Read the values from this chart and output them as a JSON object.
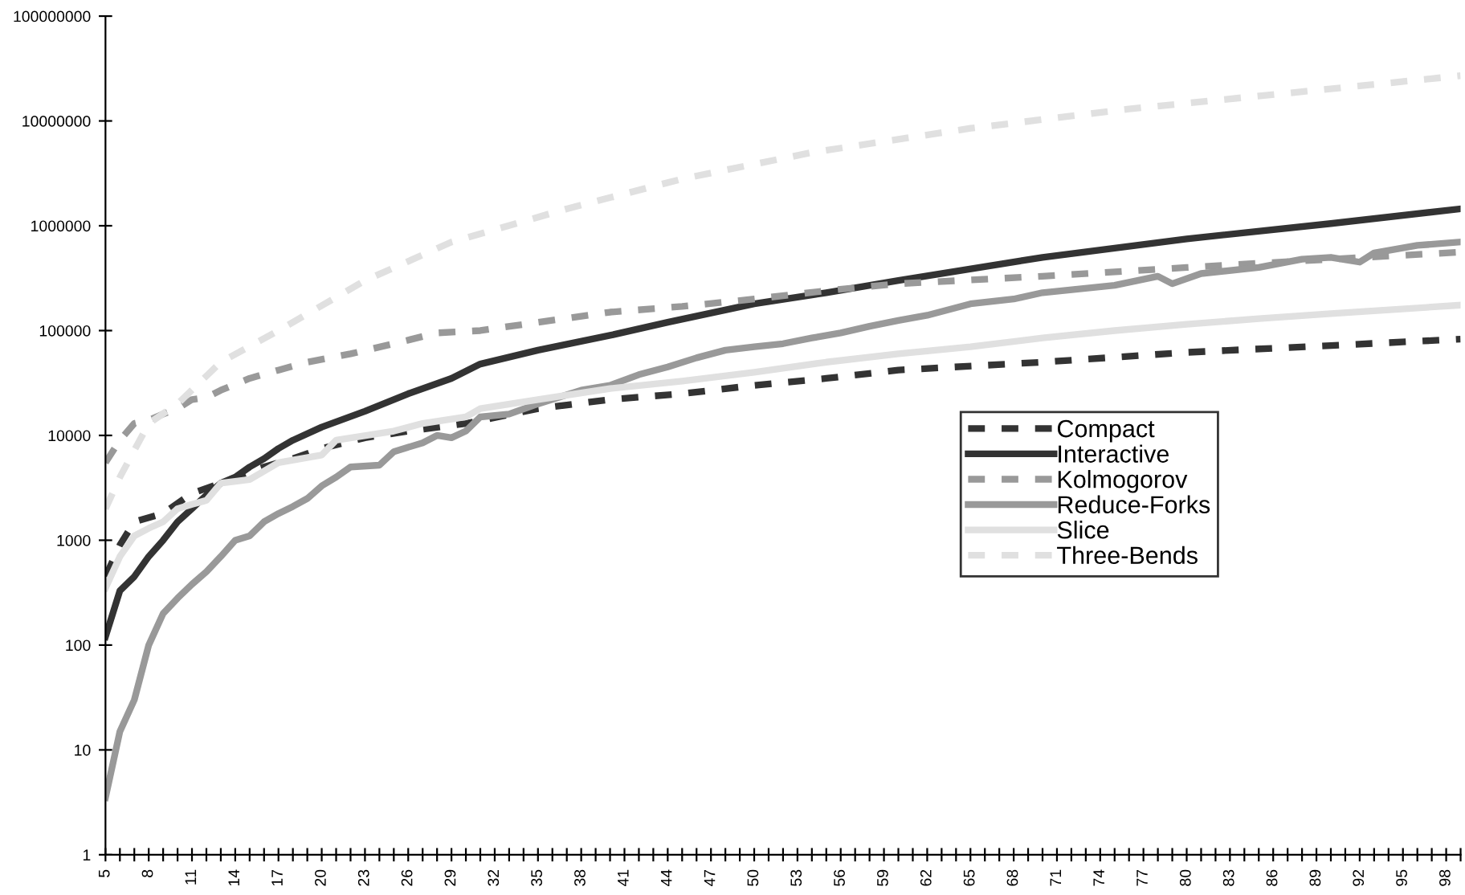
{
  "chart_data": {
    "type": "line",
    "log": "y",
    "grid": false,
    "legend": "right",
    "marker": "none",
    "xlim": [
      5,
      99
    ],
    "ylim": [
      1,
      100000000
    ],
    "yticks": [
      1,
      10,
      100,
      1000,
      10000,
      100000,
      1000000,
      10000000,
      100000000
    ],
    "xticks": [
      5,
      {
        "value": 6,
        "label": null
      },
      {
        "value": 7,
        "label": null
      },
      8,
      {
        "value": 9,
        "label": null
      },
      {
        "value": 10,
        "label": null
      },
      11,
      {
        "value": 12,
        "label": null
      },
      {
        "value": 13,
        "label": null
      },
      14,
      {
        "value": 15,
        "label": null
      },
      {
        "value": 16,
        "label": null
      },
      17,
      {
        "value": 18,
        "label": null
      },
      {
        "value": 19,
        "label": null
      },
      20,
      {
        "value": 21,
        "label": null
      },
      {
        "value": 22,
        "label": null
      },
      23,
      {
        "value": 24,
        "label": null
      },
      {
        "value": 25,
        "label": null
      },
      26,
      {
        "value": 27,
        "label": null
      },
      {
        "value": 28,
        "label": null
      },
      29,
      {
        "value": 30,
        "label": null
      },
      {
        "value": 31,
        "label": null
      },
      32,
      {
        "value": 33,
        "label": null
      },
      {
        "value": 34,
        "label": null
      },
      35,
      {
        "value": 36,
        "label": null
      },
      {
        "value": 37,
        "label": null
      },
      38,
      {
        "value": 39,
        "label": null
      },
      {
        "value": 40,
        "label": null
      },
      41,
      {
        "value": 42,
        "label": null
      },
      {
        "value": 43,
        "label": null
      },
      44,
      {
        "value": 45,
        "label": null
      },
      {
        "value": 46,
        "label": null
      },
      47,
      {
        "value": 48,
        "label": null
      },
      {
        "value": 49,
        "label": null
      },
      50,
      {
        "value": 51,
        "label": null
      },
      {
        "value": 52,
        "label": null
      },
      53,
      {
        "value": 54,
        "label": null
      },
      {
        "value": 55,
        "label": null
      },
      56,
      {
        "value": 57,
        "label": null
      },
      {
        "value": 58,
        "label": null
      },
      59,
      {
        "value": 60,
        "label": null
      },
      {
        "value": 61,
        "label": null
      },
      62,
      {
        "value": 63,
        "label": null
      },
      {
        "value": 64,
        "label": null
      },
      65,
      {
        "value": 66,
        "label": null
      },
      {
        "value": 67,
        "label": null
      },
      68,
      {
        "value": 69,
        "label": null
      },
      {
        "value": 70,
        "label": null
      },
      71,
      {
        "value": 72,
        "label": null
      },
      {
        "value": 73,
        "label": null
      },
      74,
      {
        "value": 75,
        "label": null
      },
      {
        "value": 76,
        "label": null
      },
      77,
      {
        "value": 78,
        "label": null
      },
      {
        "value": 79,
        "label": null
      },
      80,
      {
        "value": 81,
        "label": null
      },
      {
        "value": 82,
        "label": null
      },
      83,
      {
        "value": 84,
        "label": null
      },
      {
        "value": 85,
        "label": null
      },
      86,
      {
        "value": 87,
        "label": null
      },
      {
        "value": 88,
        "label": null
      },
      89,
      {
        "value": 90,
        "label": null
      },
      {
        "value": 91,
        "label": null
      },
      92,
      {
        "value": 93,
        "label": null
      },
      {
        "value": 94,
        "label": null
      },
      95,
      {
        "value": 96,
        "label": null
      },
      {
        "value": 97,
        "label": null
      },
      98,
      {
        "value": 99,
        "label": null
      }
    ],
    "series": [
      {
        "name": "Compact",
        "color": "#333333",
        "line_style": "dashed",
        "x": [
          5,
          6,
          7,
          9,
          11,
          13,
          15,
          16,
          18,
          20,
          23,
          26,
          30,
          35,
          40,
          45,
          50,
          55,
          60,
          70,
          80,
          90,
          99
        ],
        "values": [
          450,
          900,
          1500,
          1800,
          2800,
          3500,
          4500,
          5000,
          6000,
          7500,
          9500,
          11000,
          13000,
          18000,
          22000,
          25000,
          30000,
          35000,
          42000,
          50000,
          62000,
          72000,
          83000
        ]
      },
      {
        "name": "Interactive",
        "color": "#333333",
        "line_style": "solid",
        "x": [
          5,
          6,
          7,
          8,
          9,
          10,
          11,
          12,
          13,
          14,
          15,
          16,
          17,
          18,
          20,
          23,
          26,
          29,
          31,
          35,
          40,
          44,
          50,
          55,
          60,
          70,
          80,
          90,
          99
        ],
        "values": [
          120,
          330,
          450,
          700,
          1000,
          1500,
          2000,
          2700,
          3500,
          4000,
          5000,
          6000,
          7500,
          9000,
          12000,
          17000,
          25000,
          35000,
          48000,
          65000,
          90000,
          120000,
          180000,
          230000,
          300000,
          500000,
          750000,
          1050000,
          1450000
        ]
      },
      {
        "name": "Kolmogorov",
        "color": "#999999",
        "line_style": "dashed",
        "x": [
          5,
          6,
          7,
          8,
          9,
          10,
          11,
          12,
          13,
          15,
          17,
          19,
          22,
          25,
          28,
          31,
          35,
          40,
          45,
          50,
          55,
          60,
          70,
          80,
          90,
          99
        ],
        "values": [
          5500,
          9000,
          13000,
          14000,
          16000,
          18000,
          22000,
          23000,
          27000,
          35000,
          42000,
          50000,
          60000,
          75000,
          95000,
          100000,
          120000,
          150000,
          170000,
          200000,
          240000,
          280000,
          330000,
          400000,
          480000,
          560000
        ]
      },
      {
        "name": "Reduce-Forks",
        "color": "#999999",
        "line_style": "solid",
        "x": [
          5,
          6,
          7,
          8,
          9,
          10,
          11,
          12,
          13,
          14,
          15,
          16,
          17,
          18,
          19,
          20,
          21,
          22,
          24,
          25,
          27,
          28,
          29,
          30,
          31,
          33,
          35,
          38,
          40,
          42,
          44,
          46,
          48,
          50,
          52,
          54,
          56,
          58,
          60,
          62,
          65,
          68,
          70,
          75,
          78,
          79,
          81,
          85,
          88,
          90,
          92,
          93,
          96,
          99
        ],
        "values": [
          3.5,
          15,
          30,
          100,
          200,
          280,
          380,
          500,
          700,
          1000,
          1100,
          1500,
          1800,
          2100,
          2500,
          3300,
          4000,
          5000,
          5200,
          7000,
          8500,
          10000,
          9500,
          11000,
          15000,
          16000,
          20000,
          27000,
          30000,
          38000,
          45000,
          55000,
          65000,
          70000,
          75000,
          85000,
          95000,
          110000,
          125000,
          140000,
          180000,
          200000,
          230000,
          270000,
          330000,
          280000,
          350000,
          400000,
          480000,
          500000,
          450000,
          550000,
          650000,
          700000
        ]
      },
      {
        "name": "Slice",
        "color": "#e0e0e0",
        "line_style": "solid",
        "x": [
          5,
          6,
          7,
          8,
          9,
          10,
          11,
          12,
          13,
          15,
          17,
          20,
          21,
          25,
          27,
          30,
          31,
          35,
          40,
          45,
          50,
          55,
          60,
          65,
          70,
          75,
          80,
          85,
          90,
          99
        ],
        "values": [
          350,
          700,
          1100,
          1300,
          1500,
          2000,
          2200,
          2400,
          3500,
          3800,
          5500,
          6500,
          9000,
          11000,
          13000,
          15000,
          18000,
          22000,
          28000,
          33000,
          40000,
          50000,
          60000,
          70000,
          85000,
          100000,
          115000,
          130000,
          145000,
          175000
        ]
      },
      {
        "name": "Three-Bends",
        "color": "#e0e0e0",
        "line_style": "dashed",
        "x": [
          5,
          6,
          8,
          10,
          13,
          17,
          23,
          29,
          37,
          45,
          54,
          65,
          76,
          88,
          99
        ],
        "values": [
          2000,
          4000,
          13000,
          20000,
          50000,
          100000,
          300000,
          700000,
          1450000,
          2800000,
          5000000,
          8500000,
          13000000,
          19000000,
          27000000
        ]
      }
    ]
  }
}
